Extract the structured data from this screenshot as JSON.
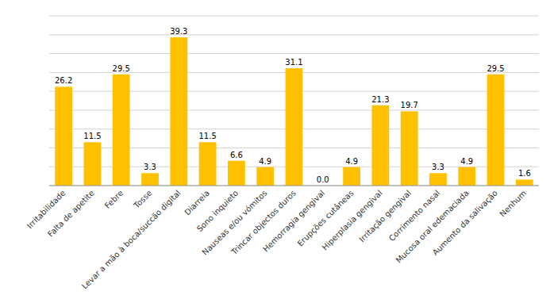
{
  "chart_data": {
    "type": "bar",
    "categories": [
      "Irritabilidade",
      "Falta de apetite",
      "Febre",
      "Tosse",
      "Levar a mão à boca/succão digital",
      "Diarreia",
      "Sono inquieto",
      "Nauseas e/ou vómitos",
      "Trincar objectos duros",
      "Hemorragia gengival",
      "Erupções cutâneas",
      "Hiperplasia gengival",
      "Irritação gengival",
      "Corrimento nasal",
      "Mucosa oral edemaciada",
      "Aumento da salivação",
      "Nenhum"
    ],
    "values": [
      26.2,
      11.5,
      29.5,
      3.3,
      39.3,
      11.5,
      6.6,
      4.9,
      31.1,
      0.0,
      4.9,
      21.3,
      19.7,
      3.3,
      4.9,
      29.5,
      1.6
    ],
    "value_labels": [
      "26.2",
      "11.5",
      "29.5",
      "3.3",
      "39.3",
      "11.5",
      "6.6",
      "4.9",
      "31.1",
      "0.0",
      "4.9",
      "21.3",
      "19.7",
      "3.3",
      "4.9",
      "29.5",
      "1.6"
    ],
    "color": "#FFC000",
    "ylim": [
      0,
      45
    ],
    "yticks": [
      0,
      5,
      10,
      15,
      20,
      25,
      30,
      35,
      40,
      45
    ],
    "grid": true,
    "data_labels": true,
    "tick_labels": "x"
  }
}
